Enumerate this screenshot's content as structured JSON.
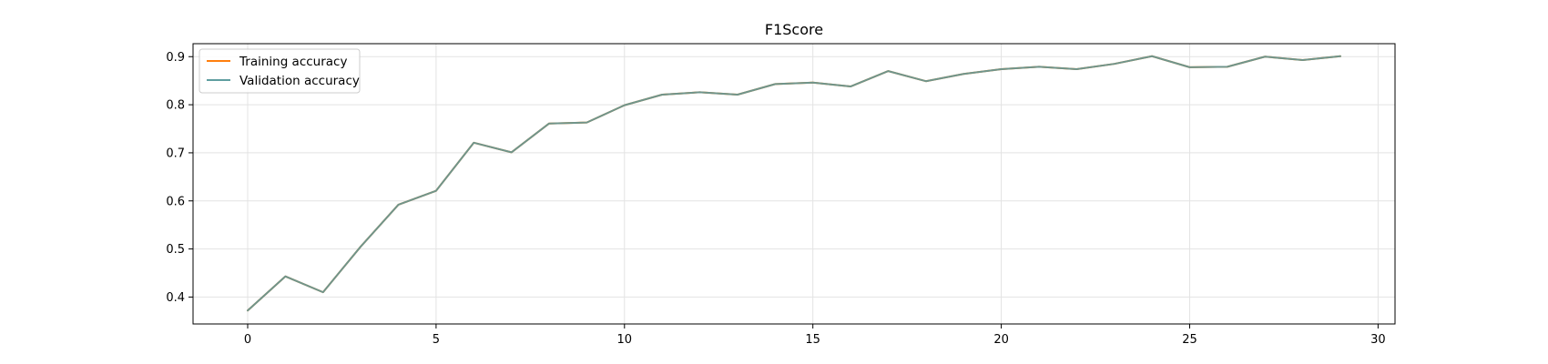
{
  "chart_data": {
    "type": "line",
    "title": "F1Score",
    "xlabel": "",
    "ylabel": "",
    "xlim": [
      -1.45,
      30.45
    ],
    "ylim": [
      0.344,
      0.927
    ],
    "xticks": [
      0,
      5,
      10,
      15,
      20,
      25,
      30
    ],
    "yticks": [
      0.4,
      0.5,
      0.6,
      0.7,
      0.8,
      0.9
    ],
    "grid": true,
    "legend_position": "top-left",
    "x": [
      0,
      1,
      2,
      3,
      4,
      5,
      6,
      7,
      8,
      9,
      10,
      11,
      12,
      13,
      14,
      15,
      16,
      17,
      18,
      19,
      20,
      21,
      22,
      23,
      24,
      25,
      26,
      27,
      28,
      29
    ],
    "series": [
      {
        "name": "Training accuracy",
        "color": "#ff7f0e",
        "values": [
          0.372,
          0.443,
          0.41,
          0.505,
          0.592,
          0.621,
          0.721,
          0.701,
          0.761,
          0.763,
          0.799,
          0.821,
          0.826,
          0.821,
          0.843,
          0.846,
          0.838,
          0.87,
          0.849,
          0.864,
          0.874,
          0.879,
          0.874,
          0.885,
          0.901,
          0.878,
          0.879,
          0.9,
          0.893,
          0.901
        ]
      },
      {
        "name": "Validation accuracy",
        "color": "#5f9ea0",
        "values": [
          0.372,
          0.443,
          0.41,
          0.505,
          0.592,
          0.621,
          0.721,
          0.701,
          0.761,
          0.763,
          0.799,
          0.821,
          0.826,
          0.821,
          0.843,
          0.846,
          0.838,
          0.87,
          0.849,
          0.864,
          0.874,
          0.879,
          0.874,
          0.885,
          0.901,
          0.878,
          0.879,
          0.9,
          0.893,
          0.901
        ]
      }
    ]
  }
}
